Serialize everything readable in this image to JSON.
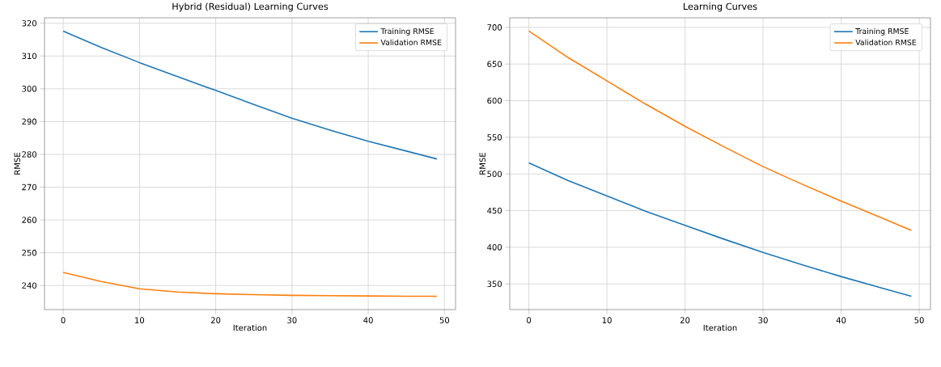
{
  "chart_data": [
    {
      "type": "line",
      "title": "Hybrid (Residual) Learning Curves",
      "xlabel": "Iteration",
      "ylabel": "RMSE",
      "x": [
        0,
        5,
        10,
        15,
        20,
        25,
        30,
        35,
        40,
        45,
        49
      ],
      "series": [
        {
          "name": "Training RMSE",
          "color": "#1f77b4",
          "values": [
            317.6,
            312.6,
            308,
            303.7,
            299.5,
            295.2,
            291,
            287.4,
            284,
            281,
            278.6
          ]
        },
        {
          "name": "Validation RMSE",
          "color": "#ff7f0e",
          "values": [
            244,
            241.2,
            239,
            238,
            237.5,
            237.2,
            237,
            236.9,
            236.8,
            236.7,
            236.7
          ]
        }
      ],
      "xlim": [
        -2.45,
        51.45
      ],
      "ylim": [
        232.65,
        321.65
      ],
      "xticks": [
        0,
        10,
        20,
        30,
        40,
        50
      ],
      "yticks": [
        240,
        250,
        260,
        270,
        280,
        290,
        300,
        310,
        320
      ],
      "grid": true,
      "legend": "top right"
    },
    {
      "type": "line",
      "title": "Learning Curves",
      "xlabel": "Iteration",
      "ylabel": "RMSE",
      "x": [
        0,
        5,
        10,
        15,
        20,
        25,
        30,
        35,
        40,
        45,
        49
      ],
      "series": [
        {
          "name": "Training RMSE",
          "color": "#1f77b4",
          "values": [
            515,
            491,
            470,
            449,
            430,
            411,
            393,
            376,
            360,
            345,
            333
          ]
        },
        {
          "name": "Validation RMSE",
          "color": "#ff7f0e",
          "values": [
            695,
            659,
            627,
            595,
            565,
            537,
            510,
            486,
            463,
            441,
            423
          ]
        }
      ],
      "xlim": [
        -2.45,
        51.45
      ],
      "ylim": [
        314.9,
        713.1
      ],
      "xticks": [
        0,
        10,
        20,
        30,
        40,
        50
      ],
      "yticks": [
        350,
        400,
        450,
        500,
        550,
        600,
        650,
        700
      ],
      "grid": true,
      "legend": "top right"
    }
  ]
}
